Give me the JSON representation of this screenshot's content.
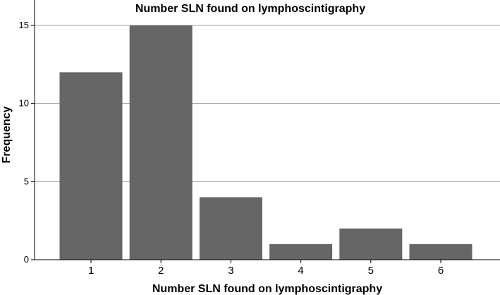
{
  "chart_data": {
    "type": "bar",
    "title": "Number SLN found on lymphoscintigraphy",
    "xlabel": "Number SLN found on lymphoscintigraphy",
    "ylabel": "Frequency",
    "categories": [
      "1",
      "2",
      "3",
      "4",
      "5",
      "6"
    ],
    "values": [
      12,
      15,
      4,
      1,
      2,
      1
    ],
    "ylim": [
      0,
      15
    ],
    "yticks": [
      "0",
      "5",
      "10",
      "15"
    ],
    "grid": true,
    "bar_color": "#666666",
    "grid_color": "#a0a0a0"
  }
}
